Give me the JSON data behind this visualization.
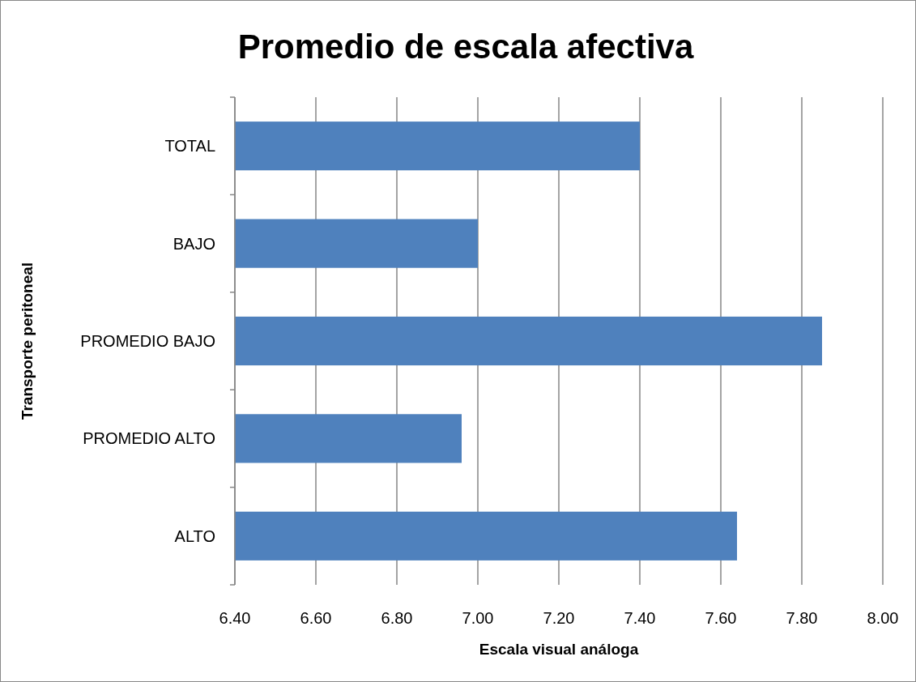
{
  "chart_data": {
    "type": "bar",
    "orientation": "horizontal",
    "title": "Promedio de escala afectiva",
    "xlabel": "Escala visual análoga",
    "ylabel": "Transporte peritoneal",
    "categories": [
      "TOTAL",
      "BAJO",
      "PROMEDIO BAJO",
      "PROMEDIO ALTO",
      "ALTO"
    ],
    "values": [
      7.4,
      7.0,
      7.85,
      6.96,
      7.64
    ],
    "color": "#4f81bd",
    "xlim": [
      6.4,
      8.0
    ],
    "xticks": [
      {
        "value": 6.4,
        "label": "6.40"
      },
      {
        "value": 6.6,
        "label": "6.60"
      },
      {
        "value": 6.8,
        "label": "6.80"
      },
      {
        "value": 7.0,
        "label": "7.00"
      },
      {
        "value": 7.2,
        "label": "7.20"
      },
      {
        "value": 7.4,
        "label": "7.40"
      },
      {
        "value": 7.6,
        "label": "7.60"
      },
      {
        "value": 7.8,
        "label": "7.80"
      },
      {
        "value": 8.0,
        "label": "8.00"
      }
    ],
    "grid": "x"
  }
}
